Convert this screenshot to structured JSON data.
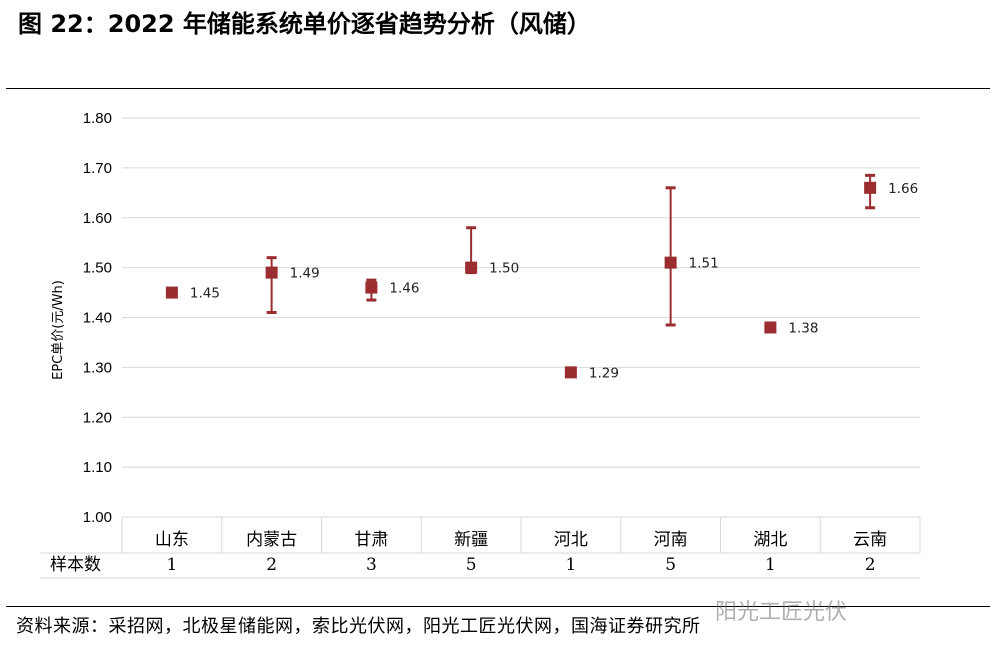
{
  "figure": {
    "title": "图 22：2022 年储能系统单价逐省趋势分析（风储）",
    "source": "资料来源：采招网，北极星储能网，索比光伏网，阳光工匠光伏网，国海证券研究所",
    "watermark": "阳光工匠光伏"
  },
  "chart_data": {
    "type": "scatter",
    "title": "",
    "xlabel": "",
    "ylabel": "EPC单价(元/Wh)",
    "ylim": [
      1.0,
      1.8
    ],
    "yticks": [
      1.0,
      1.1,
      1.2,
      1.3,
      1.4,
      1.5,
      1.6,
      1.7,
      1.8
    ],
    "ytick_labels": [
      "1.00",
      "1.10",
      "1.20",
      "1.30",
      "1.40",
      "1.50",
      "1.60",
      "1.70",
      "1.80"
    ],
    "grid": true,
    "marker_color": "#9b2d30",
    "categories": [
      "山东",
      "内蒙古",
      "甘肃",
      "新疆",
      "河北",
      "河南",
      "湖北",
      "云南"
    ],
    "values": [
      1.45,
      1.49,
      1.46,
      1.5,
      1.29,
      1.51,
      1.38,
      1.66
    ],
    "value_labels": [
      "1.45",
      "1.49",
      "1.46",
      "1.50",
      "1.29",
      "1.51",
      "1.38",
      "1.66"
    ],
    "error_high": [
      null,
      1.52,
      1.475,
      1.58,
      null,
      1.66,
      null,
      1.685
    ],
    "error_low": [
      null,
      1.41,
      1.435,
      1.49,
      null,
      1.385,
      null,
      1.62
    ],
    "sample_row_label": "样本数",
    "sample_counts": [
      "1",
      "2",
      "3",
      "5",
      "1",
      "5",
      "1",
      "2"
    ]
  }
}
